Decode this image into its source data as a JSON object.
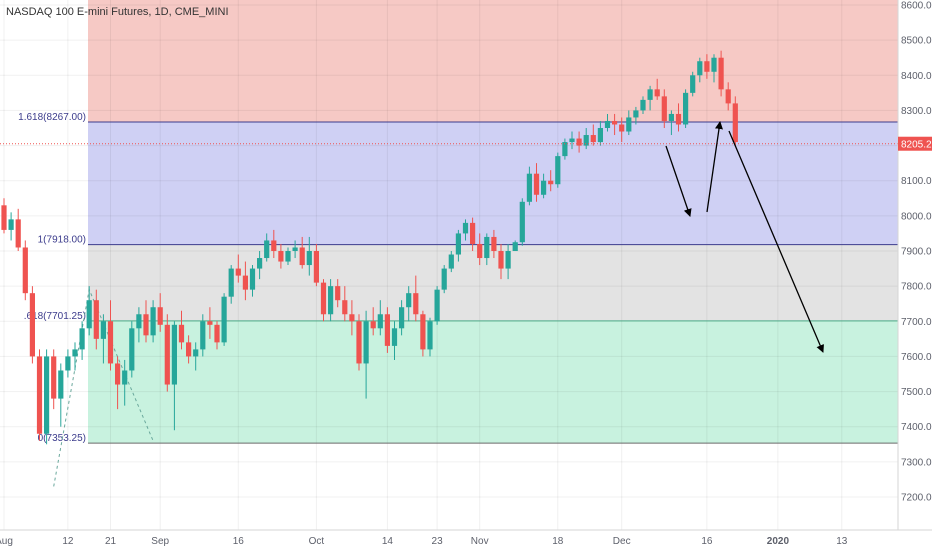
{
  "chart_data": {
    "type": "candlestick",
    "title": "NASDAQ 100 E-mini Futures, 1D, CME_MINI",
    "colors": {
      "up": "#26a69a",
      "down": "#ef5350",
      "zone_top": "#f6c9c5",
      "zone_blue": "#cfd0f4",
      "zone_gray": "#e3e3e3",
      "zone_green": "#c8f2df",
      "line_blue": "#3c3c8c",
      "price_line": "#ef5350",
      "arrow": "#000000",
      "dashed": "#6aa89c"
    },
    "y_axis": {
      "min": 7120,
      "max": 8600,
      "ticks": [
        8600,
        8500,
        8400,
        8300,
        8200,
        8100,
        8000,
        7900,
        7800,
        7700,
        7600,
        7500,
        7400,
        7300,
        7200
      ],
      "tick_labels": [
        "8600.00",
        "8500.00",
        "8400.00",
        "8300.00",
        "8200.00",
        "8100.00",
        "8000.00",
        "7900.00",
        "7800.00",
        "7700.00",
        "7600.00",
        "7500.00",
        "7400.00",
        "7300.00",
        "7200.00"
      ]
    },
    "x_axis": {
      "labels": [
        "Aug",
        "12",
        "21",
        "Sep",
        "16",
        "Oct",
        "14",
        "23",
        "Nov",
        "18",
        "Dec",
        "16",
        "2020",
        "13"
      ],
      "label_bars": [
        0,
        9,
        15,
        22,
        33,
        44,
        54,
        61,
        67,
        78,
        87,
        99,
        109,
        118
      ]
    },
    "first_bar_date": "2019-07-29",
    "candles": [
      [
        8030,
        8050,
        7950,
        7960
      ],
      [
        7960,
        8010,
        7930,
        7990
      ],
      [
        7990,
        8020,
        7900,
        7910
      ],
      [
        7910,
        7930,
        7760,
        7780
      ],
      [
        7780,
        7800,
        7580,
        7600
      ],
      [
        7600,
        7620,
        7360,
        7380
      ],
      [
        7380,
        7620,
        7350,
        7600
      ],
      [
        7600,
        7620,
        7450,
        7480
      ],
      [
        7480,
        7580,
        7400,
        7560
      ],
      [
        7560,
        7620,
        7540,
        7600
      ],
      [
        7600,
        7640,
        7560,
        7620
      ],
      [
        7620,
        7700,
        7590,
        7680
      ],
      [
        7680,
        7800,
        7660,
        7760
      ],
      [
        7760,
        7790,
        7620,
        7650
      ],
      [
        7650,
        7720,
        7580,
        7700
      ],
      [
        7700,
        7760,
        7560,
        7580
      ],
      [
        7580,
        7600,
        7450,
        7520
      ],
      [
        7520,
        7590,
        7460,
        7560
      ],
      [
        7560,
        7700,
        7540,
        7680
      ],
      [
        7680,
        7740,
        7640,
        7720
      ],
      [
        7720,
        7760,
        7640,
        7660
      ],
      [
        7660,
        7760,
        7640,
        7740
      ],
      [
        7740,
        7780,
        7670,
        7690
      ],
      [
        7690,
        7720,
        7500,
        7520
      ],
      [
        7520,
        7700,
        7390,
        7690
      ],
      [
        7690,
        7730,
        7620,
        7640
      ],
      [
        7640,
        7660,
        7580,
        7600
      ],
      [
        7600,
        7640,
        7560,
        7620
      ],
      [
        7620,
        7720,
        7600,
        7700
      ],
      [
        7700,
        7740,
        7650,
        7690
      ],
      [
        7690,
        7700,
        7620,
        7640
      ],
      [
        7640,
        7780,
        7630,
        7770
      ],
      [
        7770,
        7860,
        7750,
        7850
      ],
      [
        7850,
        7890,
        7810,
        7830
      ],
      [
        7830,
        7870,
        7760,
        7790
      ],
      [
        7790,
        7860,
        7770,
        7850
      ],
      [
        7850,
        7900,
        7820,
        7880
      ],
      [
        7880,
        7950,
        7870,
        7930
      ],
      [
        7930,
        7960,
        7880,
        7900
      ],
      [
        7900,
        7920,
        7850,
        7870
      ],
      [
        7870,
        7910,
        7860,
        7900
      ],
      [
        7900,
        7930,
        7880,
        7910
      ],
      [
        7910,
        7940,
        7850,
        7860
      ],
      [
        7860,
        7940,
        7830,
        7900
      ],
      [
        7900,
        7920,
        7800,
        7810
      ],
      [
        7810,
        7820,
        7700,
        7720
      ],
      [
        7720,
        7820,
        7700,
        7800
      ],
      [
        7800,
        7820,
        7740,
        7760
      ],
      [
        7760,
        7800,
        7700,
        7720
      ],
      [
        7720,
        7760,
        7660,
        7700
      ],
      [
        7700,
        7720,
        7560,
        7580
      ],
      [
        7580,
        7730,
        7480,
        7700
      ],
      [
        7700,
        7740,
        7660,
        7680
      ],
      [
        7680,
        7760,
        7660,
        7720
      ],
      [
        7720,
        7740,
        7610,
        7630
      ],
      [
        7630,
        7700,
        7590,
        7680
      ],
      [
        7680,
        7760,
        7660,
        7740
      ],
      [
        7740,
        7800,
        7700,
        7780
      ],
      [
        7780,
        7830,
        7700,
        7720
      ],
      [
        7720,
        7730,
        7600,
        7620
      ],
      [
        7620,
        7710,
        7600,
        7700
      ],
      [
        7700,
        7800,
        7690,
        7790
      ],
      [
        7790,
        7860,
        7780,
        7850
      ],
      [
        7850,
        7900,
        7840,
        7890
      ],
      [
        7890,
        7960,
        7870,
        7950
      ],
      [
        7950,
        7990,
        7930,
        7980
      ],
      [
        7980,
        7995,
        7900,
        7920
      ],
      [
        7920,
        7950,
        7860,
        7880
      ],
      [
        7880,
        7950,
        7860,
        7940
      ],
      [
        7940,
        7960,
        7880,
        7900
      ],
      [
        7900,
        7920,
        7820,
        7850
      ],
      [
        7850,
        7920,
        7820,
        7900
      ],
      [
        7900,
        7930,
        7900,
        7925
      ],
      [
        7925,
        8050,
        7915,
        8040
      ],
      [
        8040,
        8140,
        8030,
        8120
      ],
      [
        8120,
        8150,
        8040,
        8060
      ],
      [
        8060,
        8120,
        8050,
        8100
      ],
      [
        8100,
        8130,
        8070,
        8090
      ],
      [
        8090,
        8180,
        8080,
        8170
      ],
      [
        8170,
        8220,
        8160,
        8210
      ],
      [
        8210,
        8240,
        8190,
        8220
      ],
      [
        8220,
        8240,
        8180,
        8200
      ],
      [
        8200,
        8250,
        8190,
        8230
      ],
      [
        8230,
        8260,
        8200,
        8210
      ],
      [
        8210,
        8270,
        8200,
        8250
      ],
      [
        8250,
        8290,
        8240,
        8270
      ],
      [
        8270,
        8290,
        8230,
        8260
      ],
      [
        8260,
        8280,
        8210,
        8240
      ],
      [
        8240,
        8300,
        8230,
        8280
      ],
      [
        8280,
        8310,
        8260,
        8300
      ],
      [
        8300,
        8340,
        8290,
        8330
      ],
      [
        8330,
        8370,
        8300,
        8360
      ],
      [
        8360,
        8390,
        8330,
        8340
      ],
      [
        8340,
        8360,
        8250,
        8270
      ],
      [
        8270,
        8300,
        8230,
        8290
      ],
      [
        8290,
        8320,
        8240,
        8260
      ],
      [
        8260,
        8360,
        8250,
        8350
      ],
      [
        8350,
        8410,
        8340,
        8400
      ],
      [
        8400,
        8450,
        8380,
        8440
      ],
      [
        8440,
        8460,
        8390,
        8410
      ],
      [
        8410,
        8460,
        8380,
        8450
      ],
      [
        8450,
        8470,
        8340,
        8360
      ],
      [
        8360,
        8380,
        8300,
        8320
      ],
      [
        8320,
        8340,
        8200,
        8210
      ]
    ],
    "fib_levels": [
      {
        "label": "1.618(8267.00)",
        "value": 8267.0
      },
      {
        "label": "1(7918.00)",
        "value": 7918.0
      },
      {
        "label": ".618(7701.25)",
        "value": 7701.25
      },
      {
        "label": "0(7353.25)",
        "value": 7353.25
      }
    ],
    "current_price": {
      "label": "8205.25",
      "value": 8205.25
    }
  }
}
